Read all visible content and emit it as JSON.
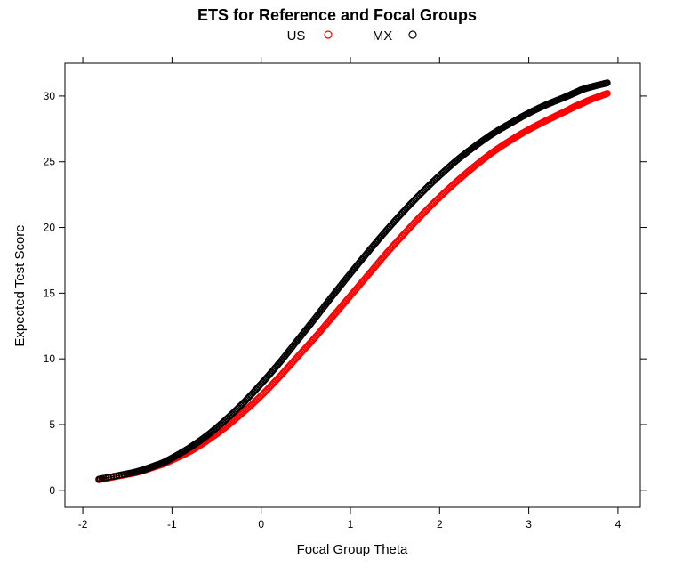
{
  "chart_data": {
    "type": "scatter",
    "title": "ETS for Reference and Focal Groups",
    "xlabel": "Focal Group Theta",
    "ylabel": "Expected Test Score",
    "xlim": [
      -2.2,
      4.25
    ],
    "ylim": [
      -1.3,
      32.5
    ],
    "x_ticks": [
      -2,
      -1,
      0,
      1,
      2,
      3,
      4
    ],
    "y_ticks": [
      0,
      5,
      10,
      15,
      20,
      25,
      30
    ],
    "x_tick_labels": [
      "-2",
      "-1",
      "0",
      "1",
      "2",
      "3",
      "4"
    ],
    "y_tick_labels": [
      "0",
      "5",
      "10",
      "15",
      "20",
      "25",
      "30"
    ],
    "legend_position": "top",
    "marker": "open-circle",
    "connected": true,
    "series": [
      {
        "name": "US",
        "color": "#ff0000",
        "points": [
          [
            -1.82,
            0.8
          ],
          [
            -1.47,
            1.25
          ],
          [
            -1.35,
            1.45
          ],
          [
            -1.28,
            1.6
          ],
          [
            -1.2,
            1.78
          ],
          [
            -1.1,
            2.0
          ],
          [
            -1.0,
            2.3
          ],
          [
            -0.8,
            2.95
          ],
          [
            -0.6,
            3.8
          ],
          [
            -0.4,
            4.8
          ],
          [
            -0.2,
            5.95
          ],
          [
            0.0,
            7.2
          ],
          [
            0.2,
            8.6
          ],
          [
            0.4,
            10.1
          ],
          [
            0.6,
            11.6
          ],
          [
            0.8,
            13.2
          ],
          [
            1.0,
            14.8
          ],
          [
            1.2,
            16.4
          ],
          [
            1.4,
            18.0
          ],
          [
            1.6,
            19.5
          ],
          [
            1.8,
            20.95
          ],
          [
            2.0,
            22.3
          ],
          [
            2.2,
            23.55
          ],
          [
            2.4,
            24.7
          ],
          [
            2.6,
            25.75
          ],
          [
            2.8,
            26.65
          ],
          [
            3.0,
            27.45
          ],
          [
            3.2,
            28.15
          ],
          [
            3.4,
            28.8
          ],
          [
            3.5,
            29.15
          ],
          [
            3.55,
            29.3
          ],
          [
            3.6,
            29.45
          ],
          [
            3.7,
            29.75
          ],
          [
            3.88,
            30.2
          ]
        ]
      },
      {
        "name": "MX",
        "color": "#000000",
        "points": [
          [
            -1.82,
            0.85
          ],
          [
            -1.47,
            1.3
          ],
          [
            -1.35,
            1.5
          ],
          [
            -1.28,
            1.65
          ],
          [
            -1.2,
            1.85
          ],
          [
            -1.1,
            2.1
          ],
          [
            -1.0,
            2.45
          ],
          [
            -0.8,
            3.25
          ],
          [
            -0.6,
            4.2
          ],
          [
            -0.4,
            5.35
          ],
          [
            -0.2,
            6.65
          ],
          [
            0.0,
            8.1
          ],
          [
            0.2,
            9.65
          ],
          [
            0.4,
            11.35
          ],
          [
            0.6,
            13.05
          ],
          [
            0.8,
            14.8
          ],
          [
            1.0,
            16.5
          ],
          [
            1.2,
            18.15
          ],
          [
            1.4,
            19.75
          ],
          [
            1.6,
            21.25
          ],
          [
            1.8,
            22.65
          ],
          [
            2.0,
            23.95
          ],
          [
            2.2,
            25.15
          ],
          [
            2.4,
            26.2
          ],
          [
            2.6,
            27.15
          ],
          [
            2.8,
            27.95
          ],
          [
            3.0,
            28.7
          ],
          [
            3.2,
            29.35
          ],
          [
            3.4,
            29.9
          ],
          [
            3.5,
            30.2
          ],
          [
            3.55,
            30.35
          ],
          [
            3.6,
            30.5
          ],
          [
            3.7,
            30.7
          ],
          [
            3.88,
            31.0
          ]
        ]
      }
    ]
  }
}
